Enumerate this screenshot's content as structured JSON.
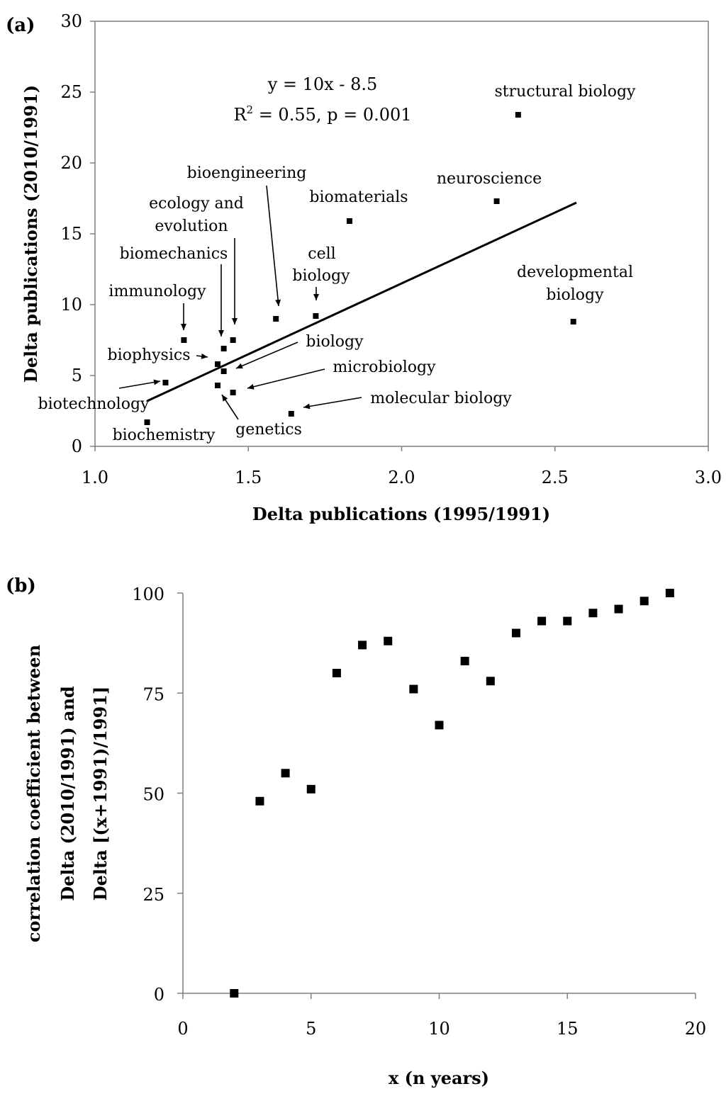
{
  "chart_data": [
    {
      "type": "scatter",
      "panel_label": "(a)",
      "xlabel": "Delta publications (1995/1991)",
      "ylabel": "Delta publications (2010/1991)",
      "xlim": [
        1.0,
        3.0
      ],
      "ylim": [
        0,
        30
      ],
      "xticks": [
        "1.0",
        "1.5",
        "2.0",
        "2.5",
        "3.0"
      ],
      "yticks": [
        "0",
        "5",
        "10",
        "15",
        "20",
        "25",
        "30"
      ],
      "grid": false,
      "trendline": {
        "slope": 10,
        "intercept": -8.5,
        "x_range": [
          1.17,
          2.57
        ]
      },
      "equation": "y = 10x - 8.5",
      "stats": {
        "r_prefix": "R",
        "r_sup": "2",
        "r_rest": " = 0.55, p = 0.001"
      },
      "points": [
        {
          "label": "structural biology",
          "x": 2.38,
          "y": 23.4
        },
        {
          "label": "neuroscience",
          "x": 2.31,
          "y": 17.3
        },
        {
          "label": "developmental biology",
          "x": 2.56,
          "y": 8.8
        },
        {
          "label": "biomaterials",
          "x": 1.83,
          "y": 15.9
        },
        {
          "label": "bioengineering",
          "x": 1.59,
          "y": 9.0
        },
        {
          "label": "cell biology",
          "x": 1.72,
          "y": 9.2
        },
        {
          "label": "ecology and evolution",
          "x": 1.45,
          "y": 7.5
        },
        {
          "label": "biomechanics",
          "x": 1.42,
          "y": 6.9
        },
        {
          "label": "immunology",
          "x": 1.29,
          "y": 7.5
        },
        {
          "label": "biophysics",
          "x": 1.4,
          "y": 5.8
        },
        {
          "label": "biology",
          "x": 1.42,
          "y": 5.3
        },
        {
          "label": "microbiology",
          "x": 1.45,
          "y": 3.8
        },
        {
          "label": "genetics",
          "x": 1.4,
          "y": 4.3
        },
        {
          "label": "biotechnology",
          "x": 1.23,
          "y": 4.5
        },
        {
          "label": "molecular biology",
          "x": 1.64,
          "y": 2.3
        },
        {
          "label": "biochemistry",
          "x": 1.17,
          "y": 1.7
        }
      ],
      "annotations": {
        "structural_biology": "structural biology",
        "neuroscience": "neuroscience",
        "developmental_1": "developmental",
        "developmental_2": "biology",
        "biomaterials": "biomaterials",
        "bioengineering": "bioengineering",
        "cell_1": "cell",
        "cell_2": "biology",
        "ecology_1": "ecology and",
        "ecology_2": "evolution",
        "biomechanics": "biomechanics",
        "immunology": "immunology",
        "biophysics": "biophysics",
        "biology": "biology",
        "microbiology": "microbiology",
        "biotechnology": "biotechnology",
        "molecular_biology": "molecular biology",
        "genetics": "genetics",
        "biochemistry": "biochemistry"
      }
    },
    {
      "type": "scatter",
      "panel_label": "(b)",
      "xlabel": "x (n years)",
      "ylabel_lines": [
        "correlation coefficient between",
        "Delta (2010/1991) and",
        "Delta [(x+1991)/1991]"
      ],
      "xlim": [
        0,
        20
      ],
      "ylim": [
        0,
        100
      ],
      "xticks": [
        "0",
        "5",
        "10",
        "15",
        "20"
      ],
      "yticks": [
        "0",
        "25",
        "50",
        "75",
        "100"
      ],
      "grid": false,
      "x": [
        2,
        3,
        4,
        5,
        6,
        7,
        8,
        9,
        10,
        11,
        12,
        13,
        14,
        15,
        16,
        17,
        18,
        19
      ],
      "y": [
        0,
        48,
        55,
        51,
        80,
        87,
        88,
        76,
        67,
        83,
        78,
        90,
        93,
        93,
        95,
        96,
        98,
        100
      ]
    }
  ]
}
